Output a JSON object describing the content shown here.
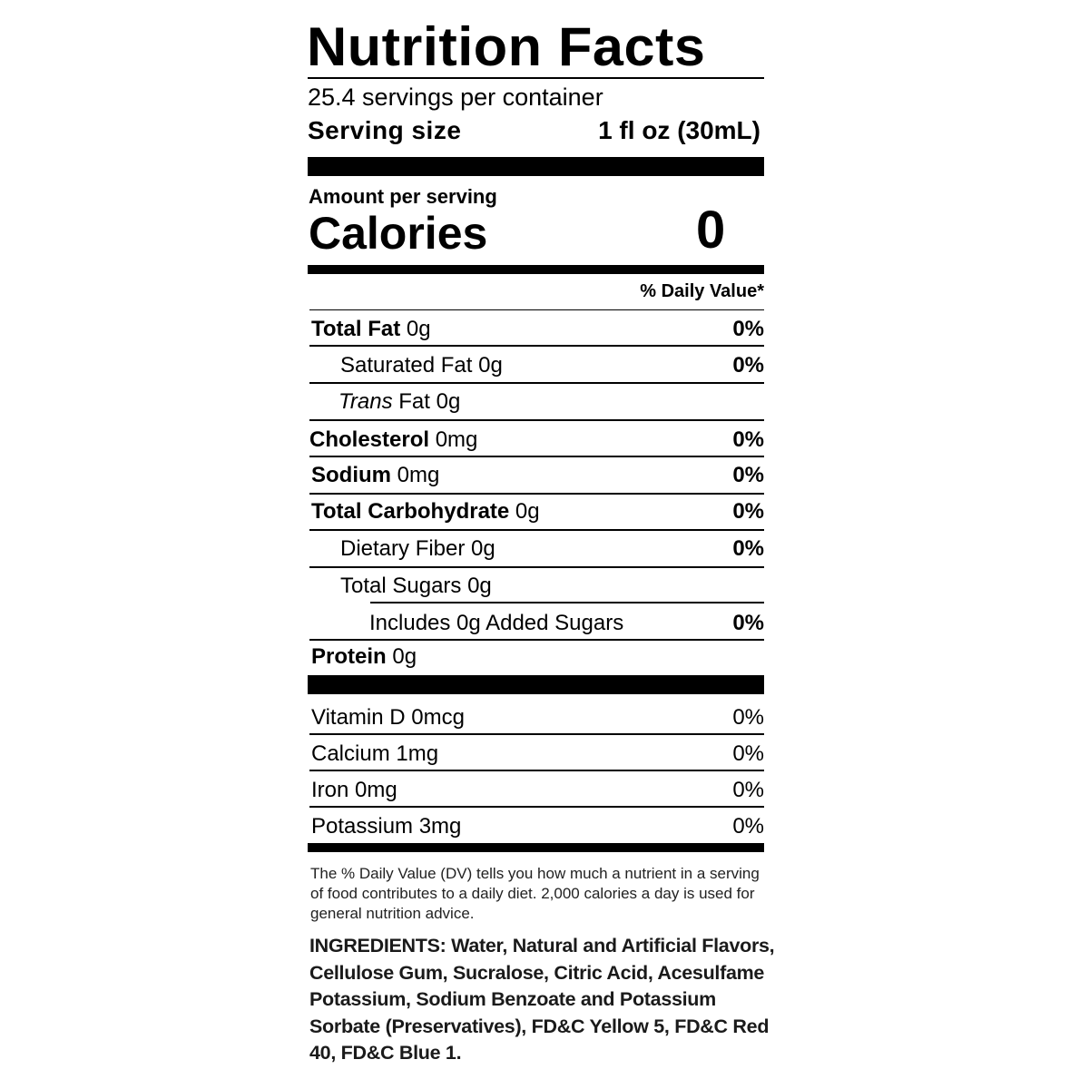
{
  "title": "Nutrition Facts",
  "servings_per_container": "25.4 servings per container",
  "serving_size": {
    "label": "Serving size",
    "value": "1 fl oz (30mL)"
  },
  "amount_per_serving": "Amount per serving",
  "calories": {
    "label": "Calories",
    "value": "0"
  },
  "daily_value_header": "% Daily Value*",
  "nutrients": [
    {
      "name": "Total Fat",
      "amount": "0g",
      "dv": "0%"
    },
    {
      "name": "Saturated Fat",
      "amount": "0g",
      "dv": "0%"
    },
    {
      "name": "Trans",
      "name_suffix": "Fat",
      "amount": "0g",
      "dv": ""
    },
    {
      "name": "Cholesterol",
      "amount": "0mg",
      "dv": "0%"
    },
    {
      "name": "Sodium",
      "amount": "0mg",
      "dv": "0%"
    },
    {
      "name": "Total Carbohydrate",
      "amount": "0g",
      "dv": "0%"
    },
    {
      "name": "Dietary Fiber",
      "amount": "0g",
      "dv": "0%"
    },
    {
      "name": "Total Sugars",
      "amount": "0g",
      "dv": ""
    },
    {
      "name": "Includes 0g Added Sugars",
      "amount": "",
      "dv": "0%"
    },
    {
      "name": "Protein",
      "amount": "0g",
      "dv": ""
    }
  ],
  "vitamins": [
    {
      "label": "Vitamin D 0mcg",
      "dv": "0%"
    },
    {
      "label": "Calcium 1mg",
      "dv": "0%"
    },
    {
      "label": "Iron 0mg",
      "dv": "0%"
    },
    {
      "label": "Potassium 3mg",
      "dv": "0%"
    }
  ],
  "footnote": "The % Daily Value (DV) tells you how much a nutrient in a serving of food contributes to a daily diet. 2,000 calories a day is used for general nutrition advice.",
  "ingredients": "INGREDIENTS: Water, Natural and Artificial Flavors, Cellulose Gum, Sucralose, Citric Acid, Acesulfame Potassium, Sodium Benzoate and Potassium Sorbate (Preservatives), FD&C Yellow 5, FD&C Red 40, FD&C Blue 1."
}
